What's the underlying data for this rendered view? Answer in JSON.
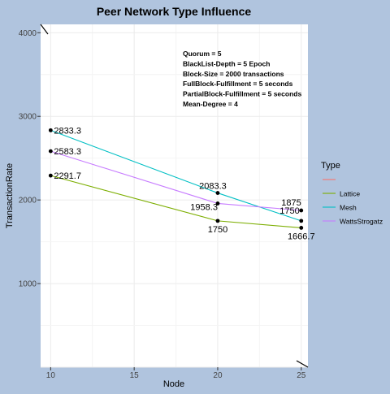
{
  "chart_data": {
    "type": "line",
    "title": "Peer Network Type Influence",
    "xlabel": "Node",
    "ylabel": "TransactionRate",
    "xlim": [
      9.4,
      25.4
    ],
    "ylim": [
      0,
      4100
    ],
    "xticks": [
      10,
      15,
      20,
      25
    ],
    "yticks": [
      1000,
      2000,
      3000,
      4000
    ],
    "grid": true,
    "annotation_lines": [
      "Quorum = 5",
      "BlackList-Depth = 5 Epoch",
      "Block-Size = 2000 transactions",
      "FullBlock-Fulfillment = 5 seconds",
      "PartialBlock-Fulfillment = 5 seconds",
      "Mean-Degree = 4"
    ],
    "legend": {
      "title": "Type",
      "position": "right",
      "entries": [
        {
          "name": "",
          "color": "#f8766d"
        },
        {
          "name": "Lattice",
          "color": "#7cae00"
        },
        {
          "name": "Mesh",
          "color": "#00bfc4"
        },
        {
          "name": "WattsStrogatz",
          "color": "#c77cff"
        }
      ]
    },
    "series": [
      {
        "name": "Lattice",
        "color": "#7cae00",
        "x": [
          10,
          20,
          25
        ],
        "y": [
          2291.7,
          1750,
          1666.7
        ],
        "labels": [
          "2291.7",
          "1750",
          "1666.7"
        ]
      },
      {
        "name": "Mesh",
        "color": "#00bfc4",
        "x": [
          10,
          20,
          25
        ],
        "y": [
          2833.3,
          2083.3,
          1750
        ],
        "labels": [
          "2833.3",
          "2083.3",
          "1750"
        ]
      },
      {
        "name": "WattsStrogatz",
        "color": "#c77cff",
        "x": [
          10,
          20,
          25
        ],
        "y": [
          2583.3,
          1958.3,
          1875
        ],
        "labels": [
          "2583.3",
          "1958.3",
          "1875"
        ]
      }
    ]
  }
}
